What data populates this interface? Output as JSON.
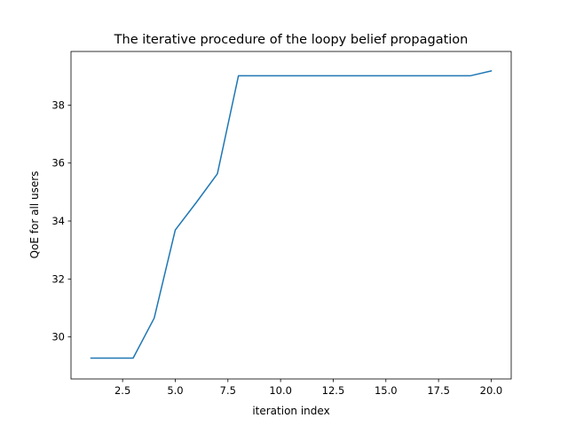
{
  "chart_data": {
    "type": "line",
    "title": "The iterative procedure of the loopy belief propagation",
    "xlabel": "iteration index",
    "ylabel": "QoE for all users",
    "xlim": [
      0.05,
      20.95
    ],
    "ylim": [
      28.55,
      39.85
    ],
    "xticks": [
      2.5,
      5.0,
      7.5,
      10.0,
      12.5,
      15.0,
      17.5,
      20.0
    ],
    "xtick_labels": [
      "2.5",
      "5.0",
      "7.5",
      "10.0",
      "12.5",
      "15.0",
      "17.5",
      "20.0"
    ],
    "yticks": [
      30,
      32,
      34,
      36,
      38
    ],
    "ytick_labels": [
      "30",
      "32",
      "34",
      "36",
      "38"
    ],
    "grid": false,
    "series": [
      {
        "color": "#1f77b4",
        "x": [
          1,
          2,
          3,
          4,
          5,
          6,
          7,
          8,
          9,
          10,
          11,
          12,
          13,
          14,
          15,
          16,
          17,
          18,
          19,
          20
        ],
        "y": [
          29.27,
          29.27,
          29.27,
          30.65,
          33.69,
          34.64,
          35.63,
          39.01,
          39.01,
          39.01,
          39.01,
          39.01,
          39.01,
          39.01,
          39.01,
          39.01,
          39.01,
          39.01,
          39.01,
          39.18
        ]
      }
    ]
  }
}
